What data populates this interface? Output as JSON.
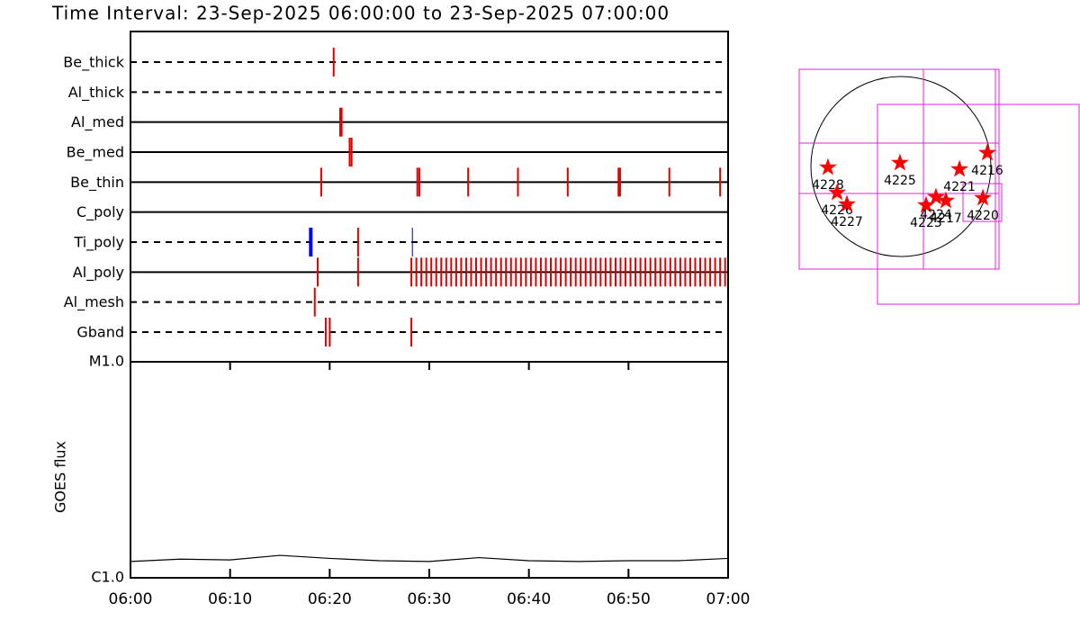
{
  "chart_data": [
    {
      "type": "timeline",
      "title": "Time Interval: 23-Sep-2025 06:00:00 to 23-Sep-2025 07:00:00",
      "xlim": [
        0,
        60
      ],
      "xticks": [
        {
          "value": 0,
          "label": "06:00"
        },
        {
          "value": 10,
          "label": "06:10"
        },
        {
          "value": 20,
          "label": "06:20"
        },
        {
          "value": 30,
          "label": "06:30"
        },
        {
          "value": 40,
          "label": "06:40"
        },
        {
          "value": 50,
          "label": "06:50"
        },
        {
          "value": 60,
          "label": "07:00"
        }
      ],
      "series": [
        {
          "name": "Be_thick",
          "line_style": "dashed",
          "color": "#e00000",
          "values": [
            20.4
          ]
        },
        {
          "name": "Al_thick",
          "line_style": "dashed",
          "color": "#e00000",
          "values": []
        },
        {
          "name": "Al_med",
          "line_style": "solid",
          "color": "#e00000",
          "values": [
            21.05,
            21.2
          ]
        },
        {
          "name": "Be_med",
          "line_style": "solid",
          "color": "#e00000",
          "values": [
            22.0,
            22.2
          ]
        },
        {
          "name": "Be_thin",
          "line_style": "solid",
          "color": "#e00000",
          "values": [
            19.15,
            28.8,
            29.0,
            33.9,
            38.9,
            43.9,
            49.0,
            49.15,
            54.1,
            59.2
          ]
        },
        {
          "name": "C_poly",
          "line_style": "solid",
          "color": "#e00000",
          "values": []
        },
        {
          "name": "Ti_poly",
          "line_style": "dashed",
          "colors": [
            "#0000ff",
            "#e00000",
            "#000080"
          ],
          "values": [
            18.1,
            22.85,
            28.3
          ]
        },
        {
          "name": "Al_poly",
          "line_style": "solid",
          "color": "#e00000",
          "values": [
            18.8,
            22.85,
            28.2,
            28.7,
            29.2,
            29.7,
            30.2,
            30.7,
            31.2,
            31.7,
            32.2,
            32.7,
            33.2,
            33.7,
            34.2,
            34.7,
            35.2,
            35.7,
            36.2,
            36.7,
            37.2,
            37.7,
            38.2,
            38.7,
            39.2,
            39.7,
            40.2,
            40.7,
            41.2,
            41.7,
            42.2,
            42.7,
            43.2,
            43.7,
            44.2,
            44.7,
            45.2,
            45.7,
            46.2,
            46.7,
            47.2,
            47.7,
            48.2,
            48.7,
            49.2,
            49.7,
            50.2,
            50.7,
            51.2,
            51.7,
            52.2,
            52.7,
            53.2,
            53.7,
            54.2,
            54.7,
            55.2,
            55.7,
            56.2,
            56.7,
            57.2,
            57.7,
            58.2,
            58.7,
            59.2,
            59.7
          ]
        },
        {
          "name": "Al_mesh",
          "line_style": "dashed",
          "color": "#e00000",
          "values": [
            18.5
          ]
        },
        {
          "name": "Gband",
          "line_style": "dashed",
          "color": "#e00000",
          "values": [
            19.6,
            20.0,
            28.2
          ]
        }
      ]
    },
    {
      "type": "line",
      "ylabel": "GOES flux",
      "log_scale": true,
      "color": "#000000",
      "xlim": [
        0,
        60
      ],
      "ylim": [
        1e-06,
        1e-05
      ],
      "yticks": [
        {
          "value": 1e-06,
          "label": "C1.0"
        },
        {
          "value": 1e-05,
          "label": "M1.0"
        }
      ],
      "x": [
        0,
        5,
        10,
        15,
        20,
        25,
        30,
        35,
        40,
        45,
        50,
        55,
        60
      ],
      "values": [
        1.19e-06,
        1.22e-06,
        1.21e-06,
        1.27e-06,
        1.23e-06,
        1.2e-06,
        1.19e-06,
        1.24e-06,
        1.2e-06,
        1.19e-06,
        1.2e-06,
        1.2e-06,
        1.23e-06
      ]
    },
    {
      "type": "scatter",
      "color": "#ff0000",
      "labels": [
        "4228",
        "4226",
        "4227",
        "4225",
        "4223",
        "4224",
        "4217",
        "4221",
        "4216",
        "4220"
      ],
      "x": [
        -770,
        -674,
        -570,
        -10,
        266,
        370,
        475,
        618,
        912,
        865
      ],
      "values": [
        -10,
        -276,
        -399,
        38,
        -409,
        -323,
        -361,
        -29,
        143,
        -333
      ]
    }
  ]
}
